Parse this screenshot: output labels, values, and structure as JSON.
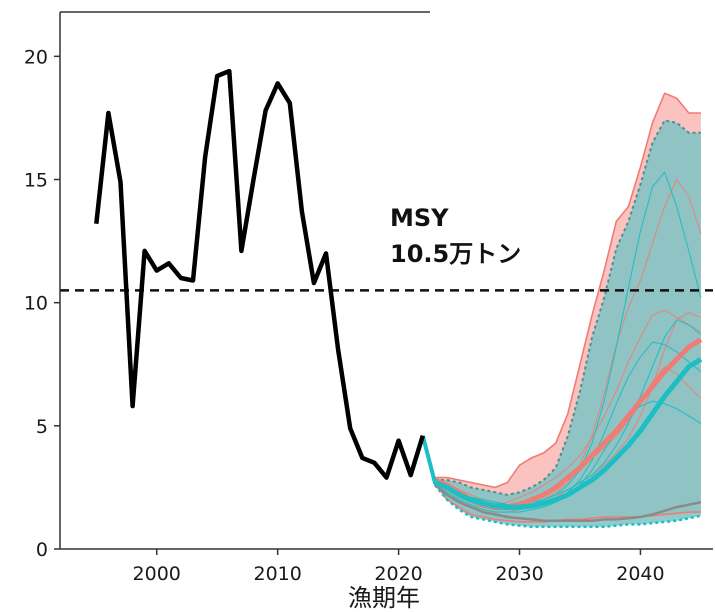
{
  "chart_data": {
    "type": "line",
    "title": "",
    "xlabel": "漁期年",
    "ylabel": "",
    "xlim": [
      1992,
      2046
    ],
    "ylim": [
      0,
      21.8
    ],
    "x_ticks": [
      2000,
      2010,
      2020,
      2030,
      2040
    ],
    "y_ticks": [
      0,
      5,
      10,
      15,
      20
    ],
    "grid": false,
    "legend": "none",
    "colors": {
      "observed": "#000000",
      "red": "#f07c75",
      "red_band": "#f9b8b4",
      "teal": "#1bbfc4",
      "teal_band": "#7cc3c3",
      "grey": "#8a8a8a",
      "msy_line": "#111111"
    },
    "msy": {
      "value": 10.5,
      "label_line1": "MSY",
      "label_line2": "10.5万トン"
    },
    "observed": {
      "x": [
        1995,
        1996,
        1997,
        1998,
        1999,
        2000,
        2001,
        2002,
        2003,
        2004,
        2005,
        2006,
        2007,
        2008,
        2009,
        2010,
        2011,
        2012,
        2013,
        2014,
        2015,
        2016,
        2017,
        2018,
        2019,
        2020,
        2021,
        2022
      ],
      "y": [
        13.2,
        17.7,
        14.9,
        5.8,
        12.1,
        11.3,
        11.6,
        11.0,
        10.9,
        15.9,
        19.2,
        19.4,
        12.1,
        15.0,
        17.8,
        18.9,
        18.1,
        13.7,
        10.8,
        12.0,
        8.1,
        4.9,
        3.7,
        3.5,
        2.9,
        4.4,
        3.0,
        4.6
      ]
    },
    "series": [
      {
        "key": "red",
        "x": [
          2023,
          2024,
          2025,
          2026,
          2027,
          2028,
          2029,
          2030,
          2031,
          2032,
          2033,
          2034,
          2035,
          2036,
          2037,
          2038,
          2039,
          2040,
          2041,
          2042,
          2043,
          2044,
          2045
        ],
        "mean": [
          2.8,
          2.6,
          2.3,
          2.0,
          1.8,
          1.7,
          1.7,
          1.8,
          2.0,
          2.2,
          2.5,
          2.9,
          3.3,
          3.8,
          4.3,
          4.8,
          5.4,
          6.0,
          6.6,
          7.2,
          7.7,
          8.2,
          8.5
        ],
        "band_upper": [
          2.9,
          2.9,
          2.8,
          2.7,
          2.6,
          2.5,
          2.7,
          3.4,
          3.7,
          3.9,
          4.3,
          5.5,
          7.5,
          9.5,
          11.3,
          13.3,
          13.9,
          15.5,
          17.3,
          18.5,
          18.3,
          17.7,
          17.7
        ],
        "band_lower": [
          2.7,
          2.0,
          1.7,
          1.4,
          1.3,
          1.2,
          1.15,
          1.1,
          1.1,
          1.1,
          1.15,
          1.2,
          1.2,
          1.25,
          1.3,
          1.3,
          1.3,
          1.3,
          1.35,
          1.4,
          1.45,
          1.5,
          1.5
        ],
        "quantile_upper": [
          2.8,
          2.8,
          2.6,
          2.5,
          2.4,
          2.3,
          2.5,
          3.0,
          3.3,
          3.5,
          3.8,
          4.9,
          6.8,
          8.6,
          10.5,
          12.0,
          13.0,
          14.3,
          15.9,
          17.2,
          17.4,
          16.9,
          16.9
        ],
        "quantile_lower": [
          2.7,
          2.2,
          1.9,
          1.6,
          1.5,
          1.4,
          1.4,
          1.5,
          1.6,
          1.7,
          1.8,
          1.9,
          2.0,
          2.1,
          2.2,
          2.3,
          2.4,
          2.6,
          2.7,
          2.8,
          2.9,
          3.0,
          3.1
        ],
        "trajectories": [
          [
            2.8,
            2.5,
            2.2,
            2.0,
            1.9,
            1.8,
            1.9,
            2.1,
            2.3,
            2.6,
            2.9,
            3.3,
            3.8,
            4.5,
            5.4,
            6.4,
            7.6,
            8.6,
            9.5,
            9.7,
            9.4,
            9.1,
            8.8
          ],
          [
            2.7,
            2.4,
            2.1,
            1.9,
            1.7,
            1.6,
            1.6,
            1.7,
            1.8,
            2.0,
            2.3,
            2.7,
            3.4,
            4.6,
            6.3,
            8.3,
            9.8,
            10.9,
            12.4,
            13.9,
            15.0,
            14.3,
            12.8
          ],
          [
            2.8,
            2.6,
            2.4,
            2.2,
            2.0,
            1.9,
            1.8,
            1.9,
            2.0,
            2.2,
            2.5,
            2.9,
            3.3,
            3.7,
            4.1,
            4.6,
            5.2,
            5.9,
            6.8,
            7.4,
            7.1,
            6.6,
            6.1
          ],
          [
            2.7,
            2.3,
            2.0,
            1.8,
            1.6,
            1.5,
            1.5,
            1.6,
            1.7,
            1.9,
            2.1,
            2.4,
            2.7,
            3.0,
            3.4,
            3.9,
            4.5,
            5.4,
            6.6,
            8.1,
            9.3,
            9.6,
            9.4
          ]
        ]
      },
      {
        "key": "teal",
        "x": [
          2023,
          2024,
          2025,
          2026,
          2027,
          2028,
          2029,
          2030,
          2031,
          2032,
          2033,
          2034,
          2035,
          2036,
          2037,
          2038,
          2039,
          2040,
          2041,
          2042,
          2043,
          2044,
          2045
        ],
        "mean": [
          2.7,
          2.5,
          2.2,
          2.0,
          1.85,
          1.75,
          1.7,
          1.7,
          1.75,
          1.85,
          2.0,
          2.2,
          2.5,
          2.8,
          3.2,
          3.7,
          4.2,
          4.8,
          5.5,
          6.2,
          6.8,
          7.4,
          7.7
        ],
        "band_upper": [
          2.8,
          2.8,
          2.7,
          2.5,
          2.4,
          2.3,
          2.2,
          2.3,
          2.5,
          2.8,
          3.3,
          4.6,
          6.4,
          8.6,
          10.2,
          12.2,
          13.3,
          14.8,
          16.5,
          17.4,
          17.3,
          16.9,
          16.9
        ],
        "band_lower": [
          2.6,
          2.0,
          1.6,
          1.3,
          1.2,
          1.1,
          1.0,
          0.95,
          0.9,
          0.9,
          0.9,
          0.9,
          0.9,
          0.9,
          0.9,
          0.95,
          1.0,
          1.0,
          1.05,
          1.1,
          1.15,
          1.25,
          1.35
        ],
        "quantile_upper": [
          2.8,
          2.8,
          2.7,
          2.5,
          2.4,
          2.3,
          2.2,
          2.3,
          2.5,
          2.8,
          3.3,
          4.6,
          6.4,
          8.6,
          10.2,
          12.2,
          13.3,
          14.8,
          16.5,
          17.4,
          17.3,
          16.9,
          16.9
        ],
        "quantile_lower": [
          2.6,
          2.0,
          1.6,
          1.3,
          1.2,
          1.1,
          1.0,
          0.95,
          0.9,
          0.9,
          0.9,
          0.9,
          0.9,
          0.9,
          0.9,
          0.95,
          1.0,
          1.0,
          1.05,
          1.1,
          1.15,
          1.25,
          1.35
        ],
        "trajectories": [
          [
            2.7,
            2.4,
            2.1,
            1.9,
            1.7,
            1.6,
            1.6,
            1.7,
            1.8,
            2.0,
            2.2,
            2.6,
            3.2,
            4.3,
            6.0,
            8.2,
            10.6,
            12.9,
            14.7,
            15.3,
            13.9,
            12.1,
            10.2
          ],
          [
            2.7,
            2.5,
            2.3,
            2.1,
            2.0,
            1.9,
            1.8,
            1.8,
            1.9,
            2.0,
            2.2,
            2.4,
            2.7,
            3.0,
            3.5,
            4.2,
            5.1,
            6.2,
            7.4,
            8.6,
            9.3,
            9.1,
            8.7
          ],
          [
            2.6,
            2.3,
            2.0,
            1.8,
            1.6,
            1.5,
            1.5,
            1.5,
            1.6,
            1.7,
            1.9,
            2.2,
            2.6,
            3.2,
            4.0,
            4.8,
            5.4,
            5.8,
            6.0,
            5.9,
            5.7,
            5.4,
            5.1
          ],
          [
            2.7,
            2.4,
            2.2,
            2.0,
            1.8,
            1.7,
            1.6,
            1.6,
            1.7,
            1.8,
            2.0,
            2.3,
            2.8,
            3.6,
            4.7,
            5.9,
            7.0,
            7.8,
            8.4,
            8.3,
            8.0,
            7.6,
            7.2
          ]
        ]
      }
    ],
    "grey_line": {
      "x": [
        2023,
        2024,
        2025,
        2026,
        2027,
        2028,
        2029,
        2030,
        2031,
        2032,
        2033,
        2034,
        2035,
        2036,
        2037,
        2038,
        2039,
        2040,
        2041,
        2042,
        2043,
        2044,
        2045
      ],
      "y": [
        2.6,
        2.2,
        1.9,
        1.7,
        1.5,
        1.4,
        1.3,
        1.25,
        1.2,
        1.15,
        1.15,
        1.15,
        1.15,
        1.15,
        1.2,
        1.2,
        1.25,
        1.3,
        1.4,
        1.55,
        1.7,
        1.8,
        1.9
      ]
    }
  }
}
